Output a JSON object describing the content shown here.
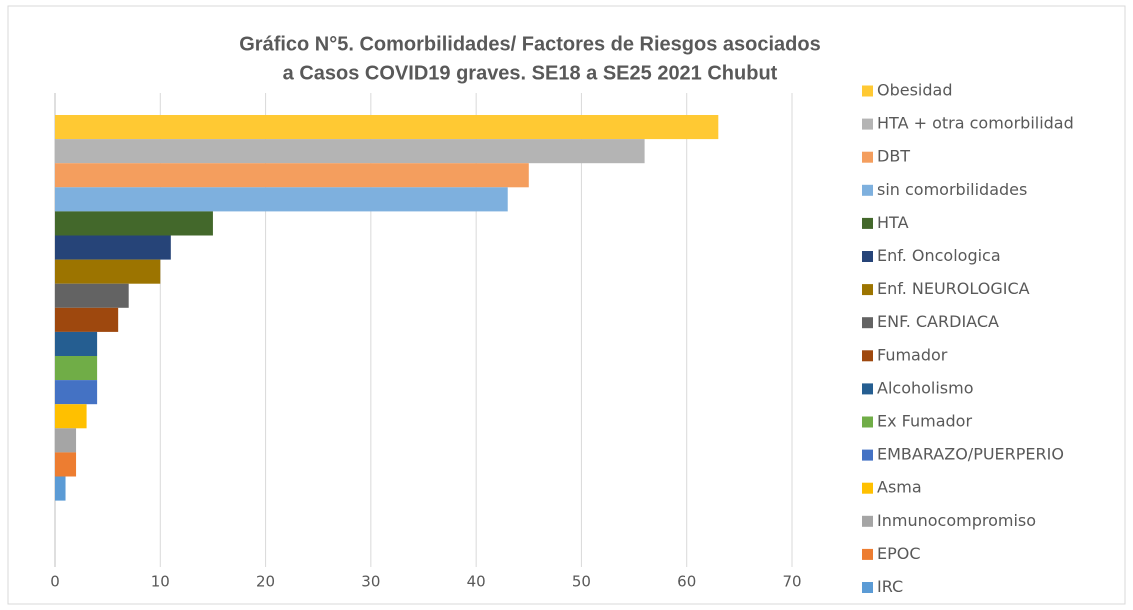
{
  "chart_data": {
    "type": "barh",
    "title": [
      "Gráfico N°5. Comorbilidades/ Factores de Riesgos asociados",
      "a Casos COVID19 graves. SE18 a SE25  2021 Chubut"
    ],
    "series": [
      {
        "name": "Obesidad",
        "color": "#FFC933",
        "values": [
          63
        ]
      },
      {
        "name": "HTA + otra comorbilidad",
        "color": "#B4B4B4",
        "values": [
          56
        ]
      },
      {
        "name": "DBT",
        "color": "#F49E5E",
        "values": [
          45
        ]
      },
      {
        "name": "sin comorbilidades",
        "color": "#7EB0DE",
        "values": [
          43
        ]
      },
      {
        "name": "HTA",
        "color": "#43682B",
        "values": [
          15
        ]
      },
      {
        "name": "Enf. Oncologica",
        "color": "#264478",
        "values": [
          11
        ]
      },
      {
        "name": "Enf. NEUROLOGICA",
        "color": "#9C7400",
        "values": [
          10
        ]
      },
      {
        "name": "ENF. CARDIACA",
        "color": "#636363",
        "values": [
          7
        ]
      },
      {
        "name": "Fumador",
        "color": "#9E480E",
        "values": [
          6
        ]
      },
      {
        "name": "Alcoholismo",
        "color": "#255E91",
        "values": [
          4
        ]
      },
      {
        "name": "Ex Fumador",
        "color": "#70AD47",
        "values": [
          4
        ]
      },
      {
        "name": "EMBARAZO/PUERPERIO",
        "color": "#4472C4",
        "values": [
          4
        ]
      },
      {
        "name": "Asma",
        "color": "#FFC000",
        "values": [
          3
        ]
      },
      {
        "name": "Inmunocompromiso",
        "color": "#A5A5A5",
        "values": [
          2
        ]
      },
      {
        "name": "EPOC",
        "color": "#ED7D31",
        "values": [
          2
        ]
      },
      {
        "name": "IRC",
        "color": "#5B9BD5",
        "values": [
          1
        ]
      }
    ],
    "xlim": [
      0,
      70
    ],
    "xticks": [
      0,
      10,
      20,
      30,
      40,
      50,
      60,
      70
    ],
    "grid": true,
    "legend": "right"
  }
}
